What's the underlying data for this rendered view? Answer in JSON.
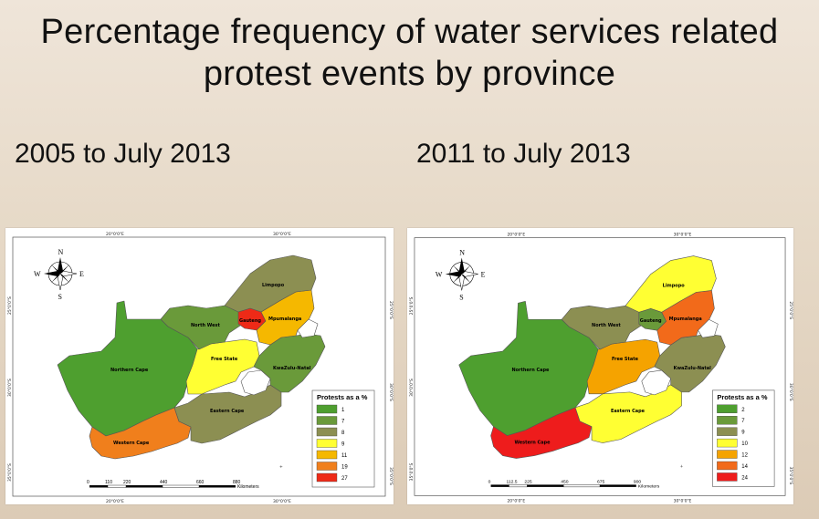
{
  "title": "Percentage frequency of water services related protest events by province",
  "maps": [
    {
      "subtitle": "2005 to July 2013",
      "legend_title": "Protests as a %",
      "legend": [
        {
          "value": "1",
          "color": "#4e9f2f"
        },
        {
          "value": "7",
          "color": "#6a9a3a"
        },
        {
          "value": "8",
          "color": "#8c8f52"
        },
        {
          "value": "9",
          "color": "#ffff33"
        },
        {
          "value": "11",
          "color": "#f5b800"
        },
        {
          "value": "19",
          "color": "#f07f1c"
        },
        {
          "value": "27",
          "color": "#ee2a17"
        }
      ],
      "scale_ticks": [
        "0",
        "110",
        "220",
        "440",
        "660",
        "880"
      ],
      "scale_unit": "Kilometers",
      "provinces": [
        {
          "id": "northern-cape",
          "label": "Northern Cape",
          "color": "#4e9f2f"
        },
        {
          "id": "western-cape",
          "label": "Western Cape",
          "color": "#f07f1c"
        },
        {
          "id": "eastern-cape",
          "label": "Eastern Cape",
          "color": "#8c8f52"
        },
        {
          "id": "free-state",
          "label": "Free State",
          "color": "#ffff33"
        },
        {
          "id": "kwazulu-natal",
          "label": "KwaZulu-Natal",
          "color": "#6a9a3a"
        },
        {
          "id": "north-west",
          "label": "North West",
          "color": "#6a9a3a"
        },
        {
          "id": "gauteng",
          "label": "Gauteng",
          "color": "#ee2a17"
        },
        {
          "id": "mpumalanga",
          "label": "Mpumalanga",
          "color": "#f5b800"
        },
        {
          "id": "limpopo",
          "label": "Limpopo",
          "color": "#8c8f52"
        }
      ]
    },
    {
      "subtitle": "2011 to July 2013",
      "legend_title": "Protests as a %",
      "legend": [
        {
          "value": "2",
          "color": "#4e9f2f"
        },
        {
          "value": "7",
          "color": "#6a9a3a"
        },
        {
          "value": "9",
          "color": "#8c8f52"
        },
        {
          "value": "10",
          "color": "#ffff33"
        },
        {
          "value": "12",
          "color": "#f5a300"
        },
        {
          "value": "14",
          "color": "#f26a1a"
        },
        {
          "value": "24",
          "color": "#ee1c1c"
        }
      ],
      "scale_ticks": [
        "0",
        "112.5",
        "225",
        "450",
        "675",
        "900"
      ],
      "scale_unit": "Kilometers",
      "provinces": [
        {
          "id": "northern-cape",
          "label": "Northern Cape",
          "color": "#4e9f2f"
        },
        {
          "id": "western-cape",
          "label": "Western Cape",
          "color": "#ee1c1c"
        },
        {
          "id": "eastern-cape",
          "label": "Eastern Cape",
          "color": "#ffff33"
        },
        {
          "id": "free-state",
          "label": "Free State",
          "color": "#f5a300"
        },
        {
          "id": "kwazulu-natal",
          "label": "KwaZulu-Natal",
          "color": "#8c8f52"
        },
        {
          "id": "north-west",
          "label": "North West",
          "color": "#8c8f52"
        },
        {
          "id": "gauteng",
          "label": "Gauteng",
          "color": "#6a9a3a"
        },
        {
          "id": "mpumalanga",
          "label": "Mpumalanga",
          "color": "#f26a1a"
        },
        {
          "id": "limpopo",
          "label": "Limpopo",
          "color": "#ffff33"
        }
      ]
    }
  ],
  "coords": {
    "top": [
      "20°0'0\"E",
      "30°0'0\"E"
    ],
    "bottom": [
      "20°0'0\"E",
      "30°0'0\"E"
    ],
    "side": [
      "25°0'0\"S",
      "30°0'0\"S",
      "35°0'0\"S"
    ]
  },
  "compass": {
    "n": "N",
    "s": "S",
    "e": "E",
    "w": "W"
  }
}
